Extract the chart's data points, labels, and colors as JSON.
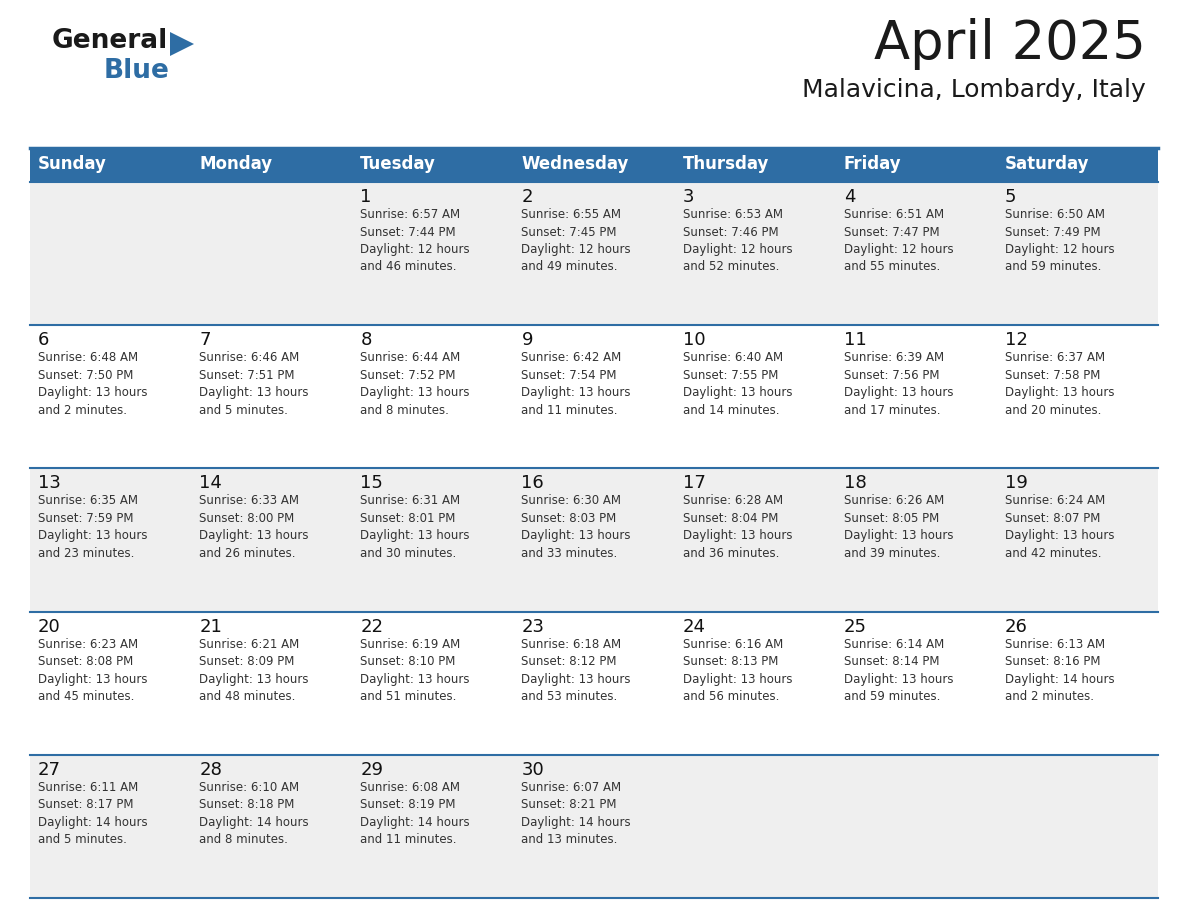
{
  "title": "April 2025",
  "subtitle": "Malavicina, Lombardy, Italy",
  "header_bg": "#2E6DA4",
  "header_text_color": "#FFFFFF",
  "row_bg_odd": "#EFEFEF",
  "row_bg_even": "#FFFFFF",
  "cell_text_color": "#333333",
  "day_number_color": "#111111",
  "grid_line_color": "#2E6DA4",
  "days_of_week": [
    "Sunday",
    "Monday",
    "Tuesday",
    "Wednesday",
    "Thursday",
    "Friday",
    "Saturday"
  ],
  "calendar": [
    [
      {
        "day": "",
        "info": ""
      },
      {
        "day": "",
        "info": ""
      },
      {
        "day": "1",
        "info": "Sunrise: 6:57 AM\nSunset: 7:44 PM\nDaylight: 12 hours\nand 46 minutes."
      },
      {
        "day": "2",
        "info": "Sunrise: 6:55 AM\nSunset: 7:45 PM\nDaylight: 12 hours\nand 49 minutes."
      },
      {
        "day": "3",
        "info": "Sunrise: 6:53 AM\nSunset: 7:46 PM\nDaylight: 12 hours\nand 52 minutes."
      },
      {
        "day": "4",
        "info": "Sunrise: 6:51 AM\nSunset: 7:47 PM\nDaylight: 12 hours\nand 55 minutes."
      },
      {
        "day": "5",
        "info": "Sunrise: 6:50 AM\nSunset: 7:49 PM\nDaylight: 12 hours\nand 59 minutes."
      }
    ],
    [
      {
        "day": "6",
        "info": "Sunrise: 6:48 AM\nSunset: 7:50 PM\nDaylight: 13 hours\nand 2 minutes."
      },
      {
        "day": "7",
        "info": "Sunrise: 6:46 AM\nSunset: 7:51 PM\nDaylight: 13 hours\nand 5 minutes."
      },
      {
        "day": "8",
        "info": "Sunrise: 6:44 AM\nSunset: 7:52 PM\nDaylight: 13 hours\nand 8 minutes."
      },
      {
        "day": "9",
        "info": "Sunrise: 6:42 AM\nSunset: 7:54 PM\nDaylight: 13 hours\nand 11 minutes."
      },
      {
        "day": "10",
        "info": "Sunrise: 6:40 AM\nSunset: 7:55 PM\nDaylight: 13 hours\nand 14 minutes."
      },
      {
        "day": "11",
        "info": "Sunrise: 6:39 AM\nSunset: 7:56 PM\nDaylight: 13 hours\nand 17 minutes."
      },
      {
        "day": "12",
        "info": "Sunrise: 6:37 AM\nSunset: 7:58 PM\nDaylight: 13 hours\nand 20 minutes."
      }
    ],
    [
      {
        "day": "13",
        "info": "Sunrise: 6:35 AM\nSunset: 7:59 PM\nDaylight: 13 hours\nand 23 minutes."
      },
      {
        "day": "14",
        "info": "Sunrise: 6:33 AM\nSunset: 8:00 PM\nDaylight: 13 hours\nand 26 minutes."
      },
      {
        "day": "15",
        "info": "Sunrise: 6:31 AM\nSunset: 8:01 PM\nDaylight: 13 hours\nand 30 minutes."
      },
      {
        "day": "16",
        "info": "Sunrise: 6:30 AM\nSunset: 8:03 PM\nDaylight: 13 hours\nand 33 minutes."
      },
      {
        "day": "17",
        "info": "Sunrise: 6:28 AM\nSunset: 8:04 PM\nDaylight: 13 hours\nand 36 minutes."
      },
      {
        "day": "18",
        "info": "Sunrise: 6:26 AM\nSunset: 8:05 PM\nDaylight: 13 hours\nand 39 minutes."
      },
      {
        "day": "19",
        "info": "Sunrise: 6:24 AM\nSunset: 8:07 PM\nDaylight: 13 hours\nand 42 minutes."
      }
    ],
    [
      {
        "day": "20",
        "info": "Sunrise: 6:23 AM\nSunset: 8:08 PM\nDaylight: 13 hours\nand 45 minutes."
      },
      {
        "day": "21",
        "info": "Sunrise: 6:21 AM\nSunset: 8:09 PM\nDaylight: 13 hours\nand 48 minutes."
      },
      {
        "day": "22",
        "info": "Sunrise: 6:19 AM\nSunset: 8:10 PM\nDaylight: 13 hours\nand 51 minutes."
      },
      {
        "day": "23",
        "info": "Sunrise: 6:18 AM\nSunset: 8:12 PM\nDaylight: 13 hours\nand 53 minutes."
      },
      {
        "day": "24",
        "info": "Sunrise: 6:16 AM\nSunset: 8:13 PM\nDaylight: 13 hours\nand 56 minutes."
      },
      {
        "day": "25",
        "info": "Sunrise: 6:14 AM\nSunset: 8:14 PM\nDaylight: 13 hours\nand 59 minutes."
      },
      {
        "day": "26",
        "info": "Sunrise: 6:13 AM\nSunset: 8:16 PM\nDaylight: 14 hours\nand 2 minutes."
      }
    ],
    [
      {
        "day": "27",
        "info": "Sunrise: 6:11 AM\nSunset: 8:17 PM\nDaylight: 14 hours\nand 5 minutes."
      },
      {
        "day": "28",
        "info": "Sunrise: 6:10 AM\nSunset: 8:18 PM\nDaylight: 14 hours\nand 8 minutes."
      },
      {
        "day": "29",
        "info": "Sunrise: 6:08 AM\nSunset: 8:19 PM\nDaylight: 14 hours\nand 11 minutes."
      },
      {
        "day": "30",
        "info": "Sunrise: 6:07 AM\nSunset: 8:21 PM\nDaylight: 14 hours\nand 13 minutes."
      },
      {
        "day": "",
        "info": ""
      },
      {
        "day": "",
        "info": ""
      },
      {
        "day": "",
        "info": ""
      }
    ]
  ],
  "logo_general_color": "#1a1a1a",
  "logo_blue_color": "#2E6DA4",
  "logo_triangle_color": "#2E6DA4",
  "title_fontsize": 38,
  "subtitle_fontsize": 18,
  "header_fontsize": 12,
  "day_num_fontsize": 13,
  "info_fontsize": 8.5
}
